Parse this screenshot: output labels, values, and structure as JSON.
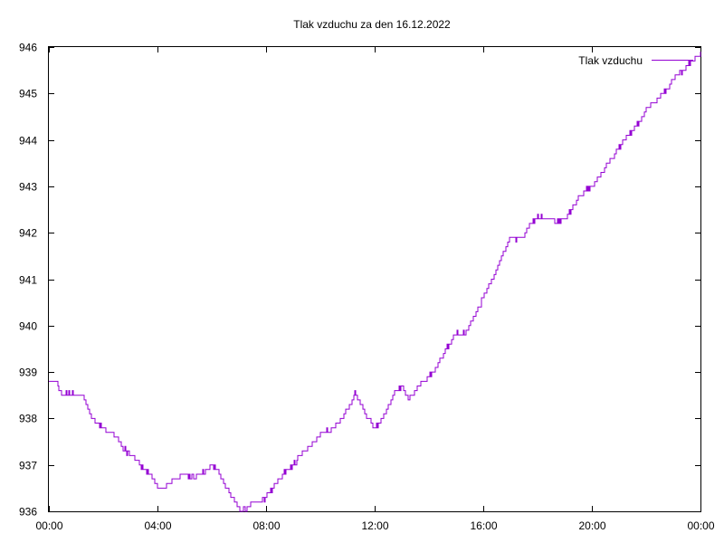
{
  "chart_data": {
    "type": "line",
    "title": "Tlak vzduchu za den 16.12.2022",
    "xlabel": "",
    "ylabel": "",
    "x_unit": "hours",
    "xlim": [
      0,
      24
    ],
    "ylim": [
      936,
      946
    ],
    "x_ticks": [
      {
        "value": 0,
        "label": "00:00"
      },
      {
        "value": 4,
        "label": "04:00"
      },
      {
        "value": 8,
        "label": "08:00"
      },
      {
        "value": 12,
        "label": "12:00"
      },
      {
        "value": 16,
        "label": "16:00"
      },
      {
        "value": 20,
        "label": "20:00"
      },
      {
        "value": 24,
        "label": "00:00"
      }
    ],
    "y_ticks": [
      {
        "value": 936,
        "label": "936"
      },
      {
        "value": 937,
        "label": "937"
      },
      {
        "value": 938,
        "label": "938"
      },
      {
        "value": 939,
        "label": "939"
      },
      {
        "value": 940,
        "label": "940"
      },
      {
        "value": 941,
        "label": "941"
      },
      {
        "value": 942,
        "label": "942"
      },
      {
        "value": 943,
        "label": "943"
      },
      {
        "value": 944,
        "label": "944"
      },
      {
        "value": 945,
        "label": "945"
      },
      {
        "value": 946,
        "label": "946"
      }
    ],
    "grid": false,
    "legend_position": "top-right",
    "series": [
      {
        "name": "Tlak vzduchu",
        "color": "#9400d3",
        "x": [
          0,
          0.25,
          0.5,
          0.75,
          1.0,
          1.25,
          1.5,
          1.75,
          2.0,
          2.25,
          2.5,
          2.75,
          3.0,
          3.25,
          3.5,
          3.75,
          4.0,
          4.25,
          4.5,
          4.75,
          5.0,
          5.25,
          5.5,
          5.75,
          6.0,
          6.25,
          6.5,
          6.75,
          7.0,
          7.25,
          7.5,
          7.75,
          8.0,
          8.25,
          8.5,
          8.75,
          9.0,
          9.25,
          9.5,
          9.75,
          10.0,
          10.25,
          10.5,
          10.75,
          11.0,
          11.25,
          11.5,
          11.75,
          12.0,
          12.25,
          12.5,
          12.75,
          13.0,
          13.25,
          13.5,
          13.75,
          14.0,
          14.25,
          14.5,
          14.75,
          15.0,
          15.25,
          15.5,
          15.75,
          16.0,
          16.25,
          16.5,
          16.75,
          17.0,
          17.25,
          17.5,
          17.75,
          18.0,
          18.25,
          18.5,
          18.75,
          19.0,
          19.25,
          19.5,
          19.75,
          20.0,
          20.25,
          20.5,
          20.75,
          21.0,
          21.25,
          21.5,
          21.75,
          22.0,
          22.25,
          22.5,
          22.75,
          23.0,
          23.25,
          23.5,
          23.75,
          24.0
        ],
        "y": [
          938.8,
          938.8,
          938.5,
          938.55,
          938.5,
          938.5,
          938.1,
          937.9,
          937.8,
          937.7,
          937.6,
          937.35,
          937.2,
          937.1,
          936.9,
          936.8,
          936.5,
          936.5,
          936.65,
          936.75,
          936.8,
          936.75,
          936.8,
          936.85,
          937.0,
          936.85,
          936.55,
          936.3,
          936.05,
          936.05,
          936.15,
          936.2,
          936.3,
          936.5,
          936.7,
          936.9,
          937.0,
          937.2,
          937.35,
          937.5,
          937.65,
          937.75,
          937.8,
          937.95,
          938.2,
          938.55,
          938.3,
          938.0,
          937.8,
          938.0,
          938.25,
          938.6,
          938.7,
          938.4,
          938.6,
          938.8,
          938.9,
          939.1,
          939.35,
          939.6,
          939.85,
          939.8,
          940.0,
          940.3,
          940.6,
          940.9,
          941.2,
          941.6,
          941.9,
          941.85,
          941.95,
          942.2,
          942.35,
          942.3,
          942.3,
          942.25,
          942.3,
          942.5,
          942.75,
          942.9,
          943.0,
          943.2,
          943.4,
          943.6,
          943.85,
          944.05,
          944.2,
          944.4,
          944.65,
          944.8,
          944.95,
          945.1,
          945.3,
          945.45,
          945.6,
          945.75,
          945.85
        ]
      }
    ]
  }
}
